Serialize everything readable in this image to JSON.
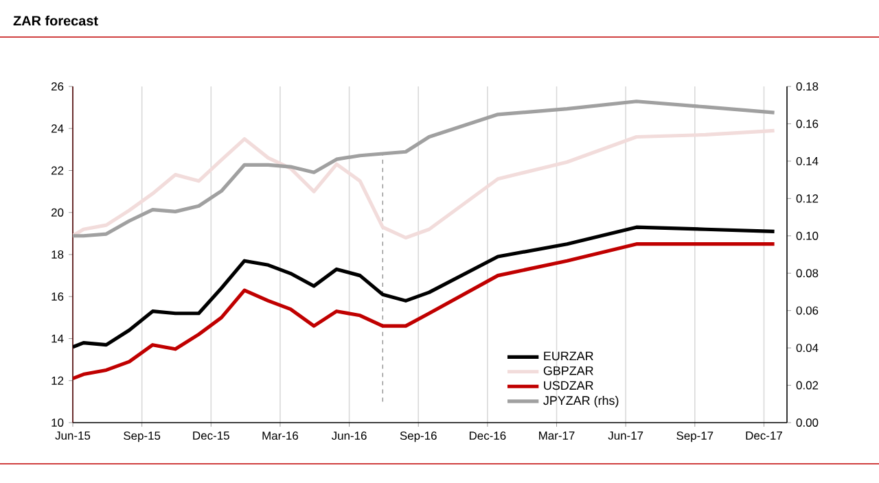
{
  "chart_data": {
    "type": "line",
    "title": "ZAR forecast",
    "x": [
      "2015-06-01",
      "2015-06-15",
      "2015-07-15",
      "2015-08-15",
      "2015-09-15",
      "2015-10-15",
      "2015-11-15",
      "2015-12-15",
      "2016-01-15",
      "2016-02-15",
      "2016-03-15",
      "2016-04-15",
      "2016-05-15",
      "2016-06-15",
      "2016-07-15",
      "2016-08-15",
      "2016-09-15",
      "2016-12-15",
      "2017-03-15",
      "2017-06-15",
      "2017-09-15",
      "2017-12-15"
    ],
    "series": [
      {
        "name": "EURZAR",
        "color": "#000000",
        "values": [
          13.6,
          13.8,
          13.7,
          14.4,
          15.3,
          15.2,
          15.2,
          16.4,
          17.7,
          17.5,
          17.1,
          16.5,
          17.3,
          17.0,
          16.1,
          15.8,
          16.2,
          17.9,
          18.5,
          19.3,
          19.2,
          19.1
        ]
      },
      {
        "name": "GBPZAR",
        "color": "#f2dcdb",
        "values": [
          18.9,
          19.2,
          19.4,
          20.1,
          20.9,
          21.8,
          21.5,
          22.5,
          23.5,
          22.6,
          22.1,
          21.0,
          22.3,
          21.5,
          19.3,
          18.8,
          19.2,
          21.6,
          22.4,
          23.6,
          23.7,
          23.9
        ]
      },
      {
        "name": "USDZAR",
        "color": "#c00000",
        "values": [
          12.1,
          12.3,
          12.5,
          12.9,
          13.7,
          13.5,
          14.2,
          15.0,
          16.3,
          15.8,
          15.4,
          14.6,
          15.3,
          15.1,
          14.6,
          14.6,
          15.2,
          17.0,
          17.7,
          18.5,
          18.5,
          18.5
        ]
      },
      {
        "name": "JPYZAR (rhs)",
        "color": "#a0a0a0",
        "axis": "y2",
        "values": [
          0.1,
          0.1,
          0.101,
          0.108,
          0.114,
          0.113,
          0.116,
          0.124,
          0.138,
          0.138,
          0.137,
          0.134,
          0.141,
          0.143,
          0.144,
          0.145,
          0.153,
          0.165,
          0.168,
          0.172,
          0.169,
          0.166
        ]
      }
    ],
    "xlim": [
      "2015-06",
      "2018-01"
    ],
    "xticks": [
      {
        "value": "2015-06",
        "label": "Jun-15"
      },
      {
        "value": "2015-09",
        "label": "Sep-15"
      },
      {
        "value": "2015-12",
        "label": "Dec-15"
      },
      {
        "value": "2016-03",
        "label": "Mar-16"
      },
      {
        "value": "2016-06",
        "label": "Jun-16"
      },
      {
        "value": "2016-09",
        "label": "Sep-16"
      },
      {
        "value": "2016-12",
        "label": "Dec-16"
      },
      {
        "value": "2017-03",
        "label": "Mar-17"
      },
      {
        "value": "2017-06",
        "label": "Jun-17"
      },
      {
        "value": "2017-09",
        "label": "Sep-17"
      },
      {
        "value": "2017-12",
        "label": "Dec-17"
      }
    ],
    "ylim": [
      10,
      26
    ],
    "yticks": [
      10,
      12,
      14,
      16,
      18,
      20,
      22,
      24,
      26
    ],
    "y2lim": [
      0,
      0.18
    ],
    "y2ticks": [
      {
        "value": 0,
        "label": "0.00"
      },
      {
        "value": 0.02,
        "label": "0.02"
      },
      {
        "value": 0.04,
        "label": "0.04"
      },
      {
        "value": 0.06,
        "label": "0.06"
      },
      {
        "value": 0.08,
        "label": "0.08"
      },
      {
        "value": 0.1,
        "label": "0.10"
      },
      {
        "value": 0.12,
        "label": "0.12"
      },
      {
        "value": 0.14,
        "label": "0.14"
      },
      {
        "value": 0.16,
        "label": "0.16"
      },
      {
        "value": 0.18,
        "label": "0.18"
      }
    ],
    "ref_lines": [
      {
        "axis": "x",
        "value": "2016-07-15",
        "color": "#808080",
        "line_style": "dashed"
      }
    ],
    "grid": "x",
    "legend": "bottom right",
    "marker": "none",
    "line_style": "solid"
  }
}
